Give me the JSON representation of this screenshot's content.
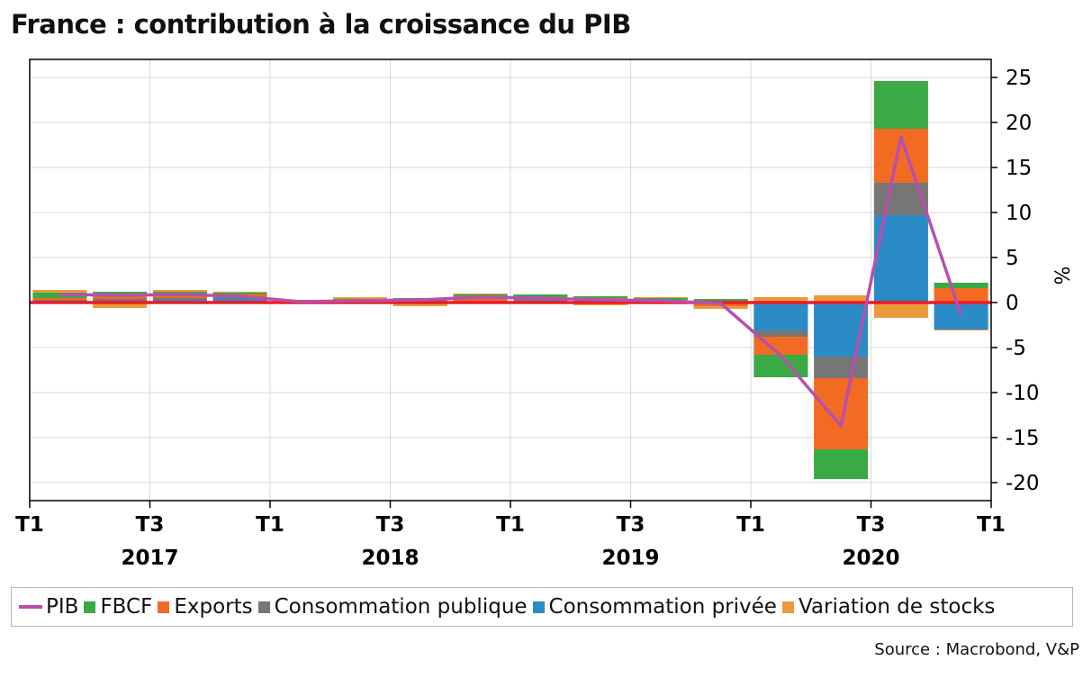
{
  "title": "France : contribution à la croissance du PIB",
  "source": "Source : Macrobond, V&P",
  "colors": {
    "pib": "#b84fae",
    "fbcf": "#3aaa45",
    "exports": "#f26b22",
    "conso_publique": "#767676",
    "conso_privee": "#2b8bc6",
    "stocks": "#e99b3a",
    "zero_line": "#ee1b24"
  },
  "legend": [
    {
      "label": "PIB",
      "kind": "line",
      "color_key": "pib"
    },
    {
      "label": "FBCF",
      "kind": "box",
      "color_key": "fbcf"
    },
    {
      "label": "Exports",
      "kind": "box",
      "color_key": "exports"
    },
    {
      "label": "Consommation publique",
      "kind": "box",
      "color_key": "conso_publique"
    },
    {
      "label": "Consommation privée",
      "kind": "box",
      "color_key": "conso_privee"
    },
    {
      "label": "Variation de stocks",
      "kind": "box",
      "color_key": "stocks"
    }
  ],
  "chart_data": {
    "type": "bar",
    "stacked": true,
    "title": "France : contribution à la croissance du PIB",
    "ylabel": "%",
    "ylim": [
      -22,
      27
    ],
    "yticks": [
      25,
      20,
      15,
      10,
      5,
      0,
      -5,
      -10,
      -15,
      -20
    ],
    "y_axis_side": "right",
    "grid": true,
    "x_tick_labels": [
      "T1",
      "T3",
      "T1",
      "T3",
      "T1",
      "T3",
      "T1",
      "T3",
      "T1"
    ],
    "x_year_labels": [
      "2017",
      "2018",
      "2019",
      "2020"
    ],
    "categories": [
      "2017 T1",
      "2017 T2",
      "2017 T3",
      "2017 T4",
      "2018 T1",
      "2018 T2",
      "2018 T3",
      "2018 T4",
      "2019 T1",
      "2019 T2",
      "2019 T3",
      "2019 T4",
      "2020 T1",
      "2020 T2",
      "2020 T3",
      "2020 T4"
    ],
    "series": [
      {
        "name": "Consommation privée",
        "color_key": "conso_privee",
        "values": [
          0.1,
          0.2,
          0.3,
          0.4,
          0.1,
          0.0,
          0.2,
          0.1,
          0.2,
          0.2,
          0.1,
          0.1,
          -3.1,
          -6.0,
          9.7,
          -3.0
        ]
      },
      {
        "name": "Consommation publique",
        "color_key": "conso_publique",
        "values": [
          0.2,
          0.2,
          0.2,
          0.2,
          0.1,
          0.1,
          0.1,
          0.1,
          0.2,
          0.2,
          0.1,
          0.1,
          -0.7,
          -2.4,
          3.6,
          0.1
        ]
      },
      {
        "name": "Exports",
        "color_key": "exports",
        "values": [
          0.2,
          0.6,
          0.4,
          0.3,
          -0.1,
          0.2,
          0.0,
          0.5,
          0.2,
          0.1,
          0.1,
          -0.4,
          -2.0,
          -7.9,
          6.0,
          1.5
        ]
      },
      {
        "name": "FBCF",
        "color_key": "fbcf",
        "values": [
          0.6,
          0.2,
          0.3,
          0.2,
          0.1,
          0.1,
          0.2,
          0.2,
          0.3,
          0.2,
          0.2,
          0.2,
          -2.5,
          -3.3,
          5.3,
          0.6
        ]
      },
      {
        "name": "Variation de stocks",
        "color_key": "stocks",
        "values": [
          0.3,
          -0.6,
          0.2,
          0.1,
          0.0,
          0.2,
          -0.4,
          0.1,
          -0.1,
          -0.3,
          0.1,
          -0.3,
          0.6,
          0.8,
          -1.7,
          -0.1
        ]
      },
      {
        "name": "PIB",
        "color_key": "pib",
        "kind": "line",
        "values": [
          0.9,
          0.8,
          0.9,
          0.7,
          0.1,
          0.2,
          0.3,
          0.6,
          0.5,
          0.3,
          0.2,
          -0.1,
          -5.9,
          -13.7,
          18.4,
          -1.4
        ]
      }
    ],
    "reference_line": 0
  }
}
